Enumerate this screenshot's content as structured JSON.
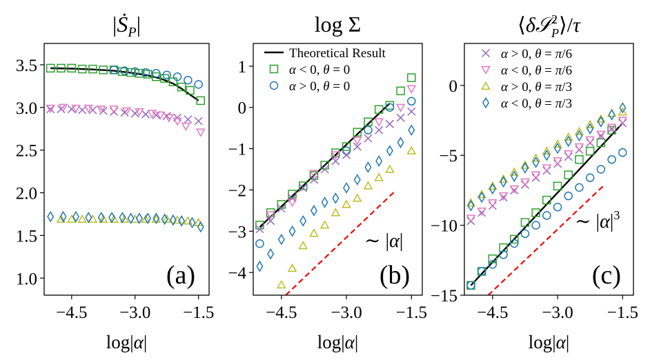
{
  "figure": {
    "background": "#ffffff"
  },
  "colors": {
    "green": "#2ca02c",
    "blue": "#1f77b4",
    "purple": "#9467bd",
    "pink": "#e377c2",
    "olive": "#bcbd22",
    "black": "#000000",
    "red": "#ff0000"
  },
  "chart_data": [
    {
      "type": "scatter",
      "panel_tag": "(a)",
      "title": "|Ṡ_P|",
      "xlabel": "log|α|",
      "ylabel": "",
      "xlim": [
        -5.15,
        -1.25
      ],
      "ylim": [
        0.8,
        3.75
      ],
      "xticks": [
        -4.5,
        -3.0,
        -1.5
      ],
      "xtick_labels": [
        "−4.5",
        "−3.0",
        "−1.5"
      ],
      "yticks": [
        1.0,
        1.5,
        2.0,
        2.5,
        3.0,
        3.5
      ],
      "ytick_labels": [
        "1.0",
        "1.5",
        "2.0",
        "2.5",
        "3.0",
        "3.5"
      ],
      "grid": false,
      "series": [
        {
          "name": "Theoretical Result",
          "marker": "line",
          "color": "black",
          "x": [
            -5.0,
            -4.5,
            -4.0,
            -3.5,
            -3.0,
            -2.7,
            -2.4,
            -2.1,
            -1.9,
            -1.7,
            -1.5
          ],
          "y": [
            3.46,
            3.455,
            3.445,
            3.43,
            3.4,
            3.375,
            3.34,
            3.28,
            3.22,
            3.15,
            3.08
          ]
        },
        {
          "name": "α < 0, θ = 0",
          "marker": "square",
          "color": "green",
          "x": [
            -5.0,
            -4.75,
            -4.5,
            -4.25,
            -4.0,
            -3.75,
            -3.5,
            -3.3,
            -3.1,
            -2.9,
            -2.7,
            -2.5,
            -2.3,
            -2.1,
            -1.9,
            -1.7,
            -1.45
          ],
          "y": [
            3.46,
            3.46,
            3.46,
            3.45,
            3.45,
            3.44,
            3.44,
            3.42,
            3.41,
            3.4,
            3.39,
            3.36,
            3.34,
            3.3,
            3.24,
            3.2,
            3.08
          ]
        },
        {
          "name": "α > 0, θ = 0",
          "marker": "circle",
          "color": "blue",
          "x": [
            -3.5,
            -3.25,
            -3.0,
            -2.75,
            -2.5,
            -2.25,
            -2.0,
            -1.75,
            -1.5
          ],
          "y": [
            3.44,
            3.43,
            3.42,
            3.41,
            3.4,
            3.38,
            3.36,
            3.32,
            3.27
          ]
        },
        {
          "name": "α > 0, θ = π/6",
          "marker": "x",
          "color": "purple",
          "x": [
            -5.0,
            -4.75,
            -4.5,
            -4.25,
            -4.0,
            -3.75,
            -3.5,
            -3.25,
            -3.0,
            -2.75,
            -2.5,
            -2.25,
            -2.0,
            -1.75,
            -1.5
          ],
          "y": [
            2.98,
            2.98,
            2.98,
            2.97,
            2.97,
            2.96,
            2.95,
            2.94,
            2.93,
            2.92,
            2.91,
            2.9,
            2.88,
            2.86,
            2.84
          ]
        },
        {
          "name": "α < 0, θ = π/6",
          "marker": "triangle-down",
          "color": "pink",
          "x": [
            -5.0,
            -4.7,
            -4.4,
            -4.1,
            -3.8,
            -3.5,
            -3.2,
            -2.9,
            -2.6,
            -2.4,
            -2.2,
            -2.0,
            -1.8,
            -1.45
          ],
          "y": [
            2.99,
            3.0,
            2.99,
            2.99,
            2.98,
            2.98,
            2.96,
            2.95,
            2.93,
            2.91,
            2.88,
            2.84,
            2.78,
            2.71
          ]
        },
        {
          "name": "α > 0, θ = π/3",
          "marker": "triangle-up",
          "color": "olive",
          "x": [
            -4.75,
            -4.5,
            -4.25,
            -4.0,
            -3.75,
            -3.5,
            -3.25,
            -3.0,
            -2.75,
            -2.5,
            -2.25,
            -2.0,
            -1.75,
            -1.5
          ],
          "y": [
            1.69,
            1.69,
            1.69,
            1.69,
            1.69,
            1.69,
            1.69,
            1.69,
            1.69,
            1.69,
            1.69,
            1.68,
            1.67,
            1.65
          ]
        },
        {
          "name": "α < 0, θ = π/3",
          "marker": "diamond",
          "color": "blue",
          "x": [
            -5.0,
            -4.7,
            -4.4,
            -4.1,
            -3.8,
            -3.55,
            -3.3,
            -3.1,
            -2.9,
            -2.7,
            -2.5,
            -2.3,
            -2.1,
            -1.9,
            -1.65,
            -1.45
          ],
          "y": [
            1.72,
            1.72,
            1.72,
            1.71,
            1.71,
            1.71,
            1.71,
            1.7,
            1.7,
            1.7,
            1.7,
            1.69,
            1.68,
            1.67,
            1.65,
            1.6
          ]
        }
      ]
    },
    {
      "type": "scatter",
      "panel_tag": "(b)",
      "title": "log Σ",
      "xlabel": "log|α|",
      "ylabel": "",
      "xlim": [
        -5.15,
        -1.25
      ],
      "ylim": [
        -4.55,
        1.55
      ],
      "xticks": [
        -4.5,
        -3.0,
        -1.5
      ],
      "xtick_labels": [
        "−4.5",
        "−3.0",
        "−1.5"
      ],
      "yticks": [
        -4,
        -3,
        -2,
        -1,
        0,
        1
      ],
      "ytick_labels": [
        "−4",
        "−3",
        "−2",
        "−1",
        "0",
        "1"
      ],
      "grid": false,
      "legend": {
        "placement": "top-left",
        "entries": [
          "Theoretical Result",
          "α < 0, θ = 0",
          "α > 0, θ = 0"
        ]
      },
      "annotation": {
        "text": "∼ |α|",
        "color": "red"
      },
      "series": [
        {
          "name": "Theoretical Result",
          "marker": "line",
          "color": "black",
          "x": [
            -5.0,
            -2.0
          ],
          "y": [
            -2.9,
            0.1
          ]
        },
        {
          "name": "α < 0, θ = 0",
          "marker": "square",
          "color": "green",
          "x": [
            -5.0,
            -4.75,
            -4.5,
            -4.25,
            -4.0,
            -3.75,
            -3.5,
            -3.25,
            -3.0,
            -2.75,
            -2.5,
            -2.25,
            -2.0,
            -1.75,
            -1.5
          ],
          "y": [
            -2.85,
            -2.55,
            -2.35,
            -2.1,
            -1.9,
            -1.65,
            -1.4,
            -1.1,
            -0.95,
            -0.6,
            -0.35,
            -0.05,
            0.05,
            0.4,
            0.72
          ]
        },
        {
          "name": "α > 0, θ = 0",
          "marker": "circle",
          "color": "blue",
          "x": [
            -5.0,
            -3.0,
            -2.5,
            -2.0,
            -1.5
          ],
          "y": [
            -3.3,
            -1.05,
            -0.55,
            0.0,
            0.15
          ]
        },
        {
          "name": "α > 0, θ = π/6",
          "marker": "x",
          "color": "purple",
          "x": [
            -5.0,
            -4.75,
            -4.5,
            -4.25,
            -4.0,
            -3.75,
            -3.5,
            -3.25,
            -3.0,
            -2.75,
            -2.5,
            -2.25,
            -2.0,
            -1.75,
            -1.5
          ],
          "y": [
            -2.95,
            -2.75,
            -2.45,
            -2.2,
            -1.95,
            -1.75,
            -1.5,
            -1.3,
            -1.15,
            -0.95,
            -0.75,
            -0.55,
            -0.4,
            -0.25,
            -0.1
          ]
        },
        {
          "name": "α < 0, θ = π/6",
          "marker": "triangle-down",
          "color": "pink",
          "x": [
            -4.75,
            -4.25,
            -3.75,
            -3.25,
            -2.75,
            -2.25,
            -1.75,
            -1.5
          ],
          "y": [
            -2.6,
            -2.3,
            -1.6,
            -1.15,
            -0.8,
            -0.35,
            0.0,
            0.45
          ]
        },
        {
          "name": "α > 0, θ = π/3",
          "marker": "triangle-up",
          "color": "olive",
          "x": [
            -4.5,
            -4.25,
            -4.0,
            -3.75,
            -3.5,
            -3.25,
            -3.0,
            -2.75,
            -2.5,
            -2.25,
            -2.0,
            -1.5
          ],
          "y": [
            -4.3,
            -3.9,
            -3.35,
            -3.05,
            -2.85,
            -2.55,
            -2.35,
            -2.2,
            -1.9,
            -1.7,
            -1.5,
            -1.05
          ]
        },
        {
          "name": "α < 0, θ = π/3",
          "marker": "diamond",
          "color": "blue",
          "x": [
            -5.0,
            -4.75,
            -4.5,
            -4.25,
            -4.0,
            -3.75,
            -3.5,
            -3.25,
            -3.0,
            -2.75,
            -2.5,
            -2.25,
            -2.0,
            -1.75,
            -1.5
          ],
          "y": [
            -3.85,
            -3.55,
            -3.2,
            -3.0,
            -2.75,
            -2.5,
            -2.3,
            -2.2,
            -1.95,
            -1.75,
            -1.45,
            -1.3,
            -1.05,
            -0.85,
            -0.55
          ]
        },
        {
          "name": "∼ |α|",
          "marker": "dashed",
          "color": "red",
          "x": [
            -4.4,
            -1.9
          ],
          "y": [
            -4.55,
            -2.05
          ]
        }
      ]
    },
    {
      "type": "scatter",
      "panel_tag": "(c)",
      "title": "⟨δ𝒮²_P⟩/τ",
      "xlabel": "log|α|",
      "ylabel": "",
      "xlim": [
        -5.15,
        -1.25
      ],
      "ylim": [
        -15,
        3
      ],
      "xticks": [
        -4.5,
        -3.0,
        -1.5
      ],
      "xtick_labels": [
        "−4.5",
        "−3.0",
        "−1.5"
      ],
      "yticks": [
        -15,
        -10,
        -5,
        0
      ],
      "ytick_labels": [
        "−15",
        "−10",
        "−5",
        "0"
      ],
      "grid": false,
      "legend": {
        "placement": "top-left",
        "entries": [
          "α > 0, θ = π/6",
          "α < 0, θ = π/6",
          "α > 0, θ = π/3",
          "α < 0, θ = π/3"
        ]
      },
      "annotation": {
        "text": "∼ |α|³",
        "color": "red"
      },
      "series": [
        {
          "name": "Theoretical Result",
          "marker": "line",
          "color": "black",
          "x": [
            -5.0,
            -1.5
          ],
          "y": [
            -14.3,
            -2.7
          ]
        },
        {
          "name": "α < 0, θ = 0",
          "marker": "square",
          "color": "green",
          "x": [
            -5.0,
            -4.75,
            -4.5,
            -4.25,
            -4.0,
            -3.75,
            -3.5,
            -3.25,
            -3.0,
            -2.75,
            -2.5,
            -2.25,
            -2.0,
            -1.75
          ],
          "y": [
            -14.3,
            -13.3,
            -12.4,
            -11.6,
            -11.0,
            -9.8,
            -9.1,
            -8.2,
            -7.2,
            -6.4,
            -5.3,
            -4.7,
            -4.1,
            -3.2
          ]
        },
        {
          "name": "α > 0, θ = 0",
          "marker": "circle",
          "color": "blue",
          "x": [
            -5.0,
            -4.75,
            -4.5,
            -4.25,
            -4.0,
            -3.75,
            -3.5,
            -3.25,
            -3.0,
            -2.75,
            -2.5,
            -2.25,
            -2.0,
            -1.75,
            -1.5
          ],
          "y": [
            -14.3,
            -13.3,
            -12.8,
            -12.1,
            -11.3,
            -10.6,
            -10.0,
            -9.3,
            -8.7,
            -7.9,
            -7.3,
            -6.6,
            -6.0,
            -5.3,
            -4.8
          ]
        },
        {
          "name": "α > 0, θ = π/6",
          "marker": "x",
          "color": "purple",
          "x": [
            -5.0,
            -4.75,
            -4.5,
            -4.25,
            -4.0,
            -3.75,
            -3.5,
            -3.25,
            -3.0,
            -2.75,
            -2.5,
            -2.25,
            -2.0,
            -1.75,
            -1.5
          ],
          "y": [
            -9.7,
            -9.1,
            -8.6,
            -8.0,
            -7.5,
            -7.1,
            -6.6,
            -6.1,
            -5.6,
            -5.1,
            -4.6,
            -4.1,
            -3.6,
            -3.1,
            -2.7
          ]
        },
        {
          "name": "α < 0, θ = π/6",
          "marker": "triangle-down",
          "color": "pink",
          "x": [
            -5.0,
            -4.75,
            -4.5,
            -4.25,
            -4.0,
            -3.75,
            -3.5,
            -3.25,
            -3.0,
            -2.75,
            -2.5,
            -2.25,
            -2.0,
            -1.75,
            -1.5
          ],
          "y": [
            -9.5,
            -9.0,
            -8.4,
            -7.9,
            -7.4,
            -6.9,
            -6.4,
            -5.9,
            -5.4,
            -4.9,
            -4.4,
            -3.9,
            -3.5,
            -3.0,
            -2.5
          ]
        },
        {
          "name": "α > 0, θ = π/3",
          "marker": "triangle-up",
          "color": "olive",
          "x": [
            -5.0,
            -4.75,
            -4.5,
            -4.25,
            -4.0,
            -3.75,
            -3.5,
            -3.25,
            -3.0,
            -2.75,
            -2.5,
            -2.25,
            -2.0,
            -1.75,
            -1.5
          ],
          "y": [
            -8.4,
            -7.8,
            -7.2,
            -6.7,
            -6.2,
            -5.7,
            -5.2,
            -4.7,
            -4.2,
            -3.7,
            -3.3,
            -2.8,
            -2.4,
            -2.0,
            -1.9
          ]
        },
        {
          "name": "α < 0, θ = π/3",
          "marker": "diamond",
          "color": "blue",
          "x": [
            -5.0,
            -4.75,
            -4.5,
            -4.25,
            -4.0,
            -3.75,
            -3.5,
            -3.25,
            -3.0,
            -2.75,
            -2.5,
            -2.25,
            -2.0,
            -1.75,
            -1.5
          ],
          "y": [
            -8.6,
            -8.0,
            -7.4,
            -6.9,
            -6.5,
            -5.9,
            -5.5,
            -5.0,
            -4.5,
            -4.0,
            -3.6,
            -3.1,
            -2.6,
            -2.1,
            -1.6
          ]
        },
        {
          "name": "∼ |α|³",
          "marker": "dashed",
          "color": "red",
          "x": [
            -4.6,
            -1.95
          ],
          "y": [
            -15,
            -7.2
          ]
        }
      ]
    }
  ]
}
